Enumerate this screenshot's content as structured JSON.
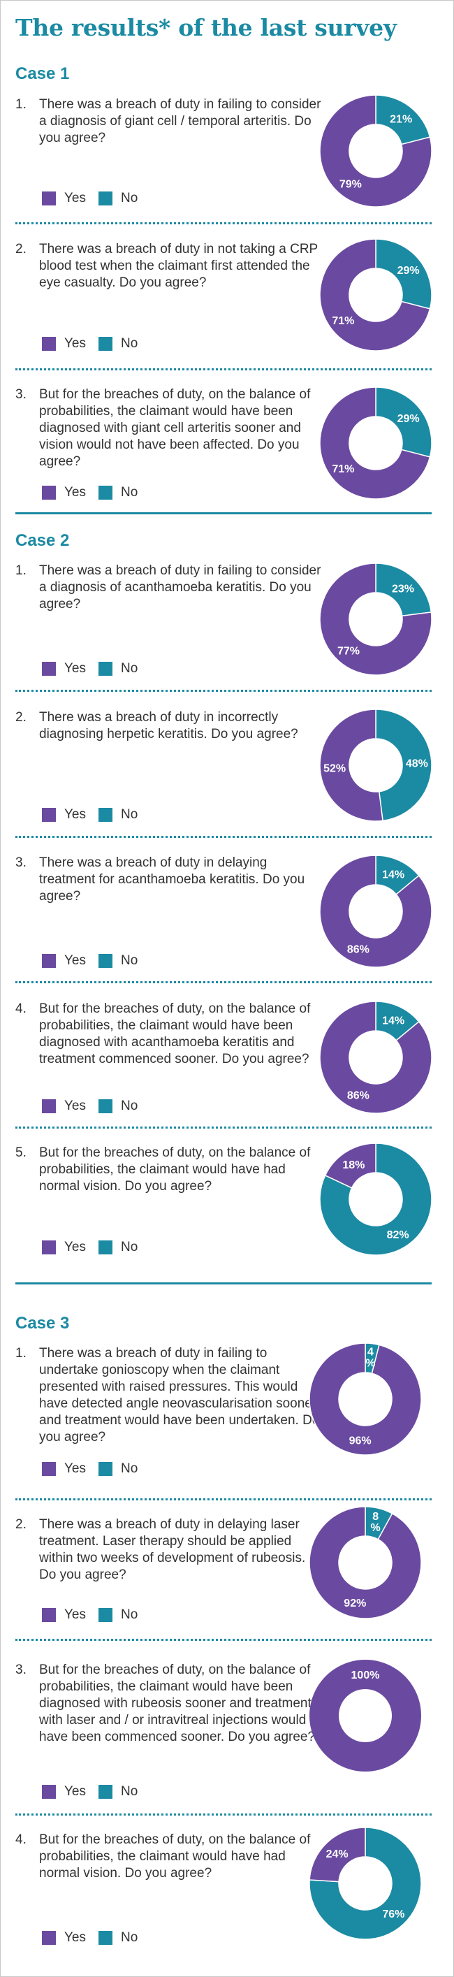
{
  "title": "The results* of the last survey",
  "legend": {
    "yes": "Yes",
    "no": "No"
  },
  "colors": {
    "yes": "#6a4aa0",
    "no": "#1b8aa3",
    "heading": "#1b8aa3"
  },
  "cases": [
    {
      "heading": "Case 1",
      "questions": [
        {
          "num": "1.",
          "text": "There was a breach of duty in failing to consider a diagnosis of giant cell / temporal arteritis. Do you agree?",
          "yes_label": "79%",
          "no_label": "21%"
        },
        {
          "num": "2.",
          "text": "There was a breach of duty in not taking a CRP blood test when the claimant first attended the eye casualty. Do you agree?",
          "yes_label": "71%",
          "no_label": "29%"
        },
        {
          "num": "3.",
          "text": "But for the breaches of duty, on the balance of probabilities, the claimant would have been diagnosed with giant cell arteritis sooner and vision would not have been affected. Do you agree?",
          "yes_label": "71%",
          "no_label": "29%"
        }
      ]
    },
    {
      "heading": "Case 2",
      "questions": [
        {
          "num": "1.",
          "text": "There was a breach of duty in failing to consider a diagnosis of acanthamoeba keratitis. Do you agree?",
          "yes_label": "77%",
          "no_label": "23%"
        },
        {
          "num": "2.",
          "text": "There was a breach of duty in incorrectly diagnosing herpetic keratitis. Do you agree?",
          "yes_label": "52%",
          "no_label": "48%"
        },
        {
          "num": "3.",
          "text": "There was a breach of duty in delaying treatment for acanthamoeba keratitis. Do you agree?",
          "yes_label": "86%",
          "no_label": "14%"
        },
        {
          "num": "4.",
          "text": "But for the breaches of duty, on the balance of probabilities, the claimant would have been diagnosed with acanthamoeba keratitis and treatment commenced sooner. Do you agree?",
          "yes_label": "86%",
          "no_label": "14%"
        },
        {
          "num": "5.",
          "text": "But for the breaches of duty, on the balance of probabilities, the claimant would have had normal vision. Do you agree?",
          "yes_label": "18%",
          "no_label": "82%"
        }
      ]
    },
    {
      "heading": "Case 3",
      "questions": [
        {
          "num": "1.",
          "text": "There was a breach of duty in failing to undertake gonioscopy when the claimant presented with raised pressures. This would have detected angle neovascularisation sooner and treatment would have been undertaken. Do you agree?",
          "yes_label": "96%",
          "no_label": "4 %"
        },
        {
          "num": "2.",
          "text": "There was a breach of duty in delaying laser treatment. Laser therapy should be applied within two weeks of development of rubeosis. Do you agree?",
          "yes_label": "92%",
          "no_label": "8 %"
        },
        {
          "num": "3.",
          "text": "But for the breaches of duty, on the balance of probabilities, the claimant would have been diagnosed with rubeosis sooner and treatment with laser and / or intravitreal injections would have been commenced sooner. Do you agree?",
          "yes_label": "100%",
          "no_label": ""
        },
        {
          "num": "4.",
          "text": "But for the breaches of duty, on the balance of probabilities, the claimant would have had normal vision. Do you agree?",
          "yes_label": "24%",
          "no_label": "76%"
        }
      ]
    }
  ],
  "chart_data": [
    {
      "type": "pie",
      "group": "Case 1",
      "question": "1.",
      "categories": [
        "Yes",
        "No"
      ],
      "values": [
        79,
        21
      ]
    },
    {
      "type": "pie",
      "group": "Case 1",
      "question": "2.",
      "categories": [
        "Yes",
        "No"
      ],
      "values": [
        71,
        29
      ]
    },
    {
      "type": "pie",
      "group": "Case 1",
      "question": "3.",
      "categories": [
        "Yes",
        "No"
      ],
      "values": [
        71,
        29
      ]
    },
    {
      "type": "pie",
      "group": "Case 2",
      "question": "1.",
      "categories": [
        "Yes",
        "No"
      ],
      "values": [
        77,
        23
      ]
    },
    {
      "type": "pie",
      "group": "Case 2",
      "question": "2.",
      "categories": [
        "Yes",
        "No"
      ],
      "values": [
        52,
        48
      ]
    },
    {
      "type": "pie",
      "group": "Case 2",
      "question": "3.",
      "categories": [
        "Yes",
        "No"
      ],
      "values": [
        86,
        14
      ]
    },
    {
      "type": "pie",
      "group": "Case 2",
      "question": "4.",
      "categories": [
        "Yes",
        "No"
      ],
      "values": [
        86,
        14
      ]
    },
    {
      "type": "pie",
      "group": "Case 2",
      "question": "5.",
      "categories": [
        "Yes",
        "No"
      ],
      "values": [
        18,
        82
      ]
    },
    {
      "type": "pie",
      "group": "Case 3",
      "question": "1.",
      "categories": [
        "Yes",
        "No"
      ],
      "values": [
        96,
        4
      ]
    },
    {
      "type": "pie",
      "group": "Case 3",
      "question": "2.",
      "categories": [
        "Yes",
        "No"
      ],
      "values": [
        92,
        8
      ]
    },
    {
      "type": "pie",
      "group": "Case 3",
      "question": "3.",
      "categories": [
        "Yes",
        "No"
      ],
      "values": [
        100,
        0
      ]
    },
    {
      "type": "pie",
      "group": "Case 3",
      "question": "4.",
      "categories": [
        "Yes",
        "No"
      ],
      "values": [
        24,
        76
      ]
    }
  ]
}
